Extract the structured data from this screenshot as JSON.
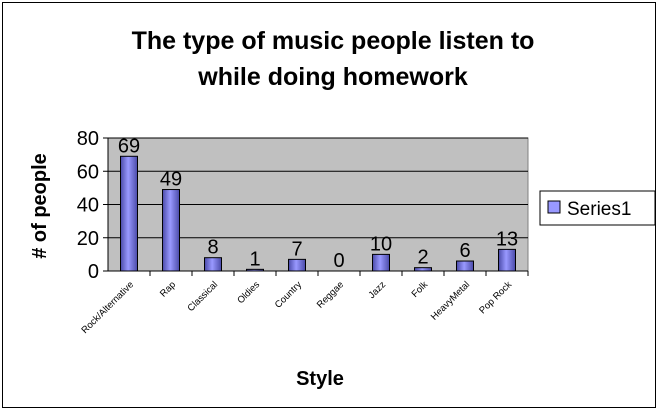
{
  "chart_data": {
    "type": "bar",
    "title_lines": [
      "The type of music people listen to",
      "while doing homework"
    ],
    "xlabel": "Style",
    "ylabel": "# of people",
    "categories": [
      "Rock/Alternative",
      "Rap",
      "Classical",
      "Oldies",
      "Country",
      "Reggae",
      "Jazz",
      "Folk",
      "HeavyMetal",
      "Pop Rock"
    ],
    "series": [
      {
        "name": "Series1",
        "values": [
          69,
          49,
          8,
          1,
          7,
          0,
          10,
          2,
          6,
          13
        ]
      }
    ],
    "data_labels": [
      "69",
      "49",
      "8",
      "1",
      "7",
      "0",
      "10",
      "2",
      "6",
      "13"
    ],
    "yticks": [
      "0",
      "20",
      "40",
      "60",
      "80"
    ],
    "ylim": [
      0,
      80
    ],
    "grid": true,
    "legend_position": "right",
    "colors": {
      "plot_background": "#C0C0C0",
      "bar_fill": "#9999FF",
      "bar_fill_dark": "#4A4AA8",
      "chart_background": "#FFFFFF"
    }
  }
}
